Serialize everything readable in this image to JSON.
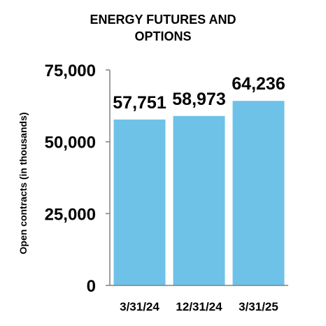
{
  "chart_data": {
    "type": "bar",
    "title_lines": [
      "ENERGY FUTURES AND",
      "OPTIONS"
    ],
    "ylabel": "Open contracts (in thousands)",
    "xlabel": "",
    "categories": [
      "3/31/24",
      "12/31/24",
      "3/31/25"
    ],
    "values": [
      57751,
      58973,
      64236
    ],
    "data_labels": [
      "57,751",
      "58,973",
      "64,236"
    ],
    "ylim": [
      0,
      75000
    ],
    "yticks": [
      0,
      25000,
      50000,
      75000
    ],
    "ytick_labels": [
      "0",
      "25,000",
      "50,000",
      "75,000"
    ],
    "grid": false,
    "legend": "none",
    "bar_color": "#6EC2E8",
    "axis_color": "#808080"
  }
}
